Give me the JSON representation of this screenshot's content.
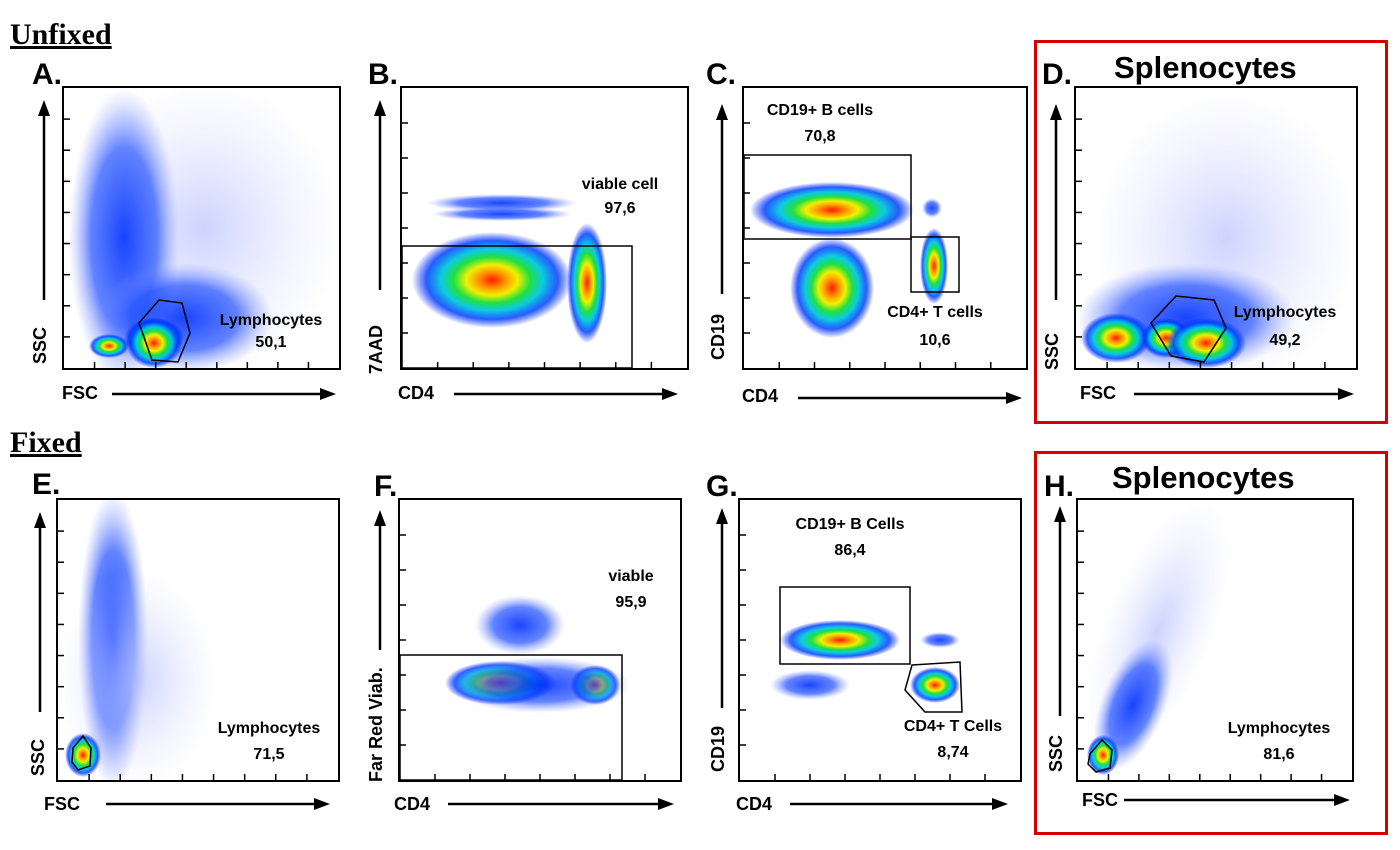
{
  "sections": {
    "unfixed": "Unfixed",
    "fixed": "Fixed"
  },
  "colors": {
    "highlight_box": "#d40000",
    "density_low": "#0033ff",
    "density_high": "#ff2000"
  },
  "panels": {
    "A": {
      "label": "A.",
      "ylabel": "SSC",
      "xlabel": "FSC",
      "gate_name": "Lymphocytes",
      "gate_value": "50,1"
    },
    "B": {
      "label": "B.",
      "ylabel": "7AAD",
      "xlabel": "CD4",
      "gate_name": "viable cell",
      "gate_value": "97,6"
    },
    "C": {
      "label": "C.",
      "ylabel": "CD19",
      "xlabel": "CD4",
      "gate1_name": "CD19+ B cells",
      "gate1_value": "70,8",
      "gate2_name": "CD4+ T cells",
      "gate2_value": "10,6"
    },
    "D": {
      "label": "D.",
      "title": "Splenocytes",
      "ylabel": "SSC",
      "xlabel": "FSC",
      "gate_name": "Lymphocytes",
      "gate_value": "49,2"
    },
    "E": {
      "label": "E.",
      "ylabel": "SSC",
      "xlabel": "FSC",
      "gate_name": "Lymphocytes",
      "gate_value": "71,5"
    },
    "F": {
      "label": "F.",
      "ylabel": "Far Red Viab.",
      "xlabel": "CD4",
      "gate_name": "viable",
      "gate_value": "95,9"
    },
    "G": {
      "label": "G.",
      "ylabel": "CD19",
      "xlabel": "CD4",
      "gate1_name": "CD19+ B Cells",
      "gate1_value": "86,4",
      "gate2_name": "CD4+ T Cells",
      "gate2_value": "8,74"
    },
    "H": {
      "label": "H.",
      "title": "Splenocytes",
      "ylabel": "SSC",
      "xlabel": "FSC",
      "gate_name": "Lymphocytes",
      "gate_value": "81,6"
    }
  }
}
